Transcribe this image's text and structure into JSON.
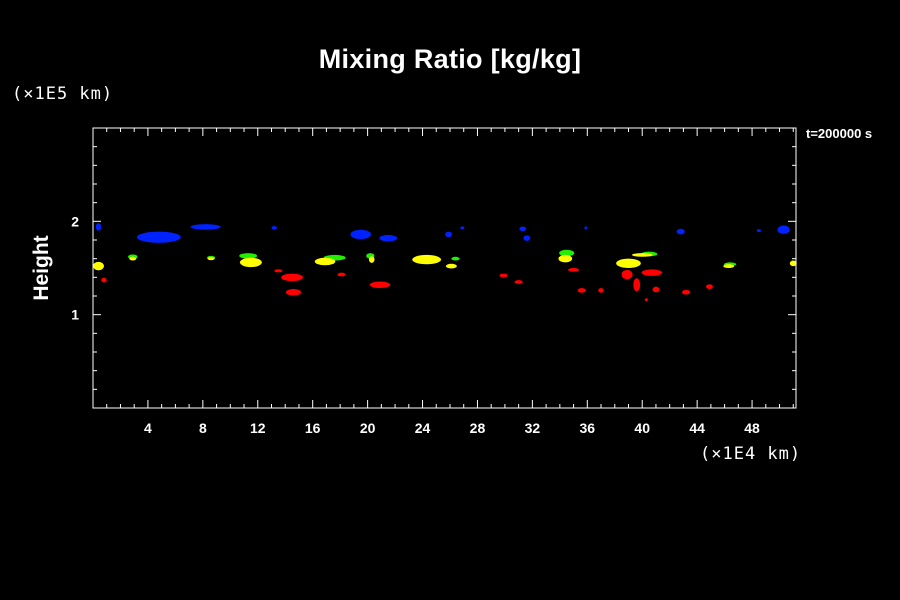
{
  "chart_data": {
    "type": "contour",
    "title": "Mixing Ratio [kg/kg]",
    "time_label": "t=200000 s",
    "ylabel": "Height",
    "y_unit": "(×1E5 km)",
    "x_unit": "(×1E4 km)",
    "xlim": [
      0,
      51.2
    ],
    "ylim": [
      0,
      3.0
    ],
    "x_ticks": [
      4,
      8,
      12,
      16,
      20,
      24,
      28,
      32,
      36,
      40,
      44,
      48
    ],
    "y_ticks": [
      1,
      2
    ],
    "x_minor_step": 1,
    "y_minor_step": 0.2,
    "colors": {
      "blue": "#0022ff",
      "green": "#22ee00",
      "yellow": "#ffff00",
      "red": "#ff0000"
    },
    "series": [
      {
        "color": "blue",
        "patches": [
          [
            0.4,
            1.94,
            0.4,
            0.08
          ],
          [
            4.8,
            1.83,
            3.2,
            0.12
          ],
          [
            8.2,
            1.94,
            2.2,
            0.06
          ],
          [
            13.2,
            1.93,
            0.4,
            0.04
          ],
          [
            19.5,
            1.86,
            1.5,
            0.1
          ],
          [
            21.5,
            1.82,
            1.3,
            0.07
          ],
          [
            25.9,
            1.86,
            0.5,
            0.06
          ],
          [
            26.9,
            1.93,
            0.3,
            0.03
          ],
          [
            31.3,
            1.92,
            0.5,
            0.05
          ],
          [
            31.6,
            1.82,
            0.5,
            0.06
          ],
          [
            35.9,
            1.93,
            0.2,
            0.03
          ],
          [
            42.8,
            1.89,
            0.6,
            0.06
          ],
          [
            48.5,
            1.9,
            0.3,
            0.03
          ],
          [
            50.3,
            1.91,
            0.9,
            0.09
          ]
        ]
      },
      {
        "color": "green",
        "patches": [
          [
            2.9,
            1.62,
            0.7,
            0.05
          ],
          [
            8.6,
            1.61,
            0.6,
            0.04
          ],
          [
            11.3,
            1.63,
            1.3,
            0.06
          ],
          [
            17.6,
            1.61,
            1.6,
            0.06
          ],
          [
            20.2,
            1.63,
            0.6,
            0.06
          ],
          [
            26.4,
            1.6,
            0.6,
            0.04
          ],
          [
            34.5,
            1.66,
            1.1,
            0.07
          ],
          [
            40.5,
            1.65,
            1.2,
            0.05
          ],
          [
            46.4,
            1.54,
            0.9,
            0.04
          ]
        ]
      },
      {
        "color": "yellow",
        "patches": [
          [
            0.4,
            1.52,
            0.8,
            0.09
          ],
          [
            2.9,
            1.6,
            0.5,
            0.04
          ],
          [
            8.6,
            1.6,
            0.5,
            0.03
          ],
          [
            11.5,
            1.56,
            1.6,
            0.1
          ],
          [
            16.9,
            1.57,
            1.5,
            0.08
          ],
          [
            20.3,
            1.59,
            0.4,
            0.07
          ],
          [
            24.3,
            1.59,
            2.1,
            0.1
          ],
          [
            26.1,
            1.52,
            0.8,
            0.05
          ],
          [
            34.4,
            1.6,
            1.0,
            0.08
          ],
          [
            39.0,
            1.55,
            1.8,
            0.1
          ],
          [
            40.0,
            1.64,
            1.5,
            0.04
          ],
          [
            46.3,
            1.52,
            0.8,
            0.04
          ],
          [
            51.0,
            1.55,
            0.5,
            0.06
          ]
        ]
      },
      {
        "color": "red",
        "patches": [
          [
            0.8,
            1.37,
            0.4,
            0.05
          ],
          [
            13.5,
            1.47,
            0.6,
            0.03
          ],
          [
            14.5,
            1.4,
            1.6,
            0.08
          ],
          [
            14.6,
            1.24,
            1.1,
            0.07
          ],
          [
            18.1,
            1.43,
            0.6,
            0.04
          ],
          [
            20.9,
            1.32,
            1.5,
            0.07
          ],
          [
            29.9,
            1.42,
            0.6,
            0.04
          ],
          [
            31.0,
            1.35,
            0.6,
            0.04
          ],
          [
            35.0,
            1.48,
            0.8,
            0.04
          ],
          [
            35.6,
            1.26,
            0.6,
            0.05
          ],
          [
            37.0,
            1.26,
            0.4,
            0.05
          ],
          [
            38.9,
            1.43,
            0.8,
            0.1
          ],
          [
            39.6,
            1.32,
            0.5,
            0.14
          ],
          [
            40.7,
            1.45,
            1.5,
            0.07
          ],
          [
            41.0,
            1.27,
            0.5,
            0.06
          ],
          [
            40.3,
            1.16,
            0.2,
            0.03
          ],
          [
            43.2,
            1.24,
            0.6,
            0.05
          ],
          [
            44.9,
            1.3,
            0.5,
            0.05
          ]
        ]
      }
    ]
  }
}
